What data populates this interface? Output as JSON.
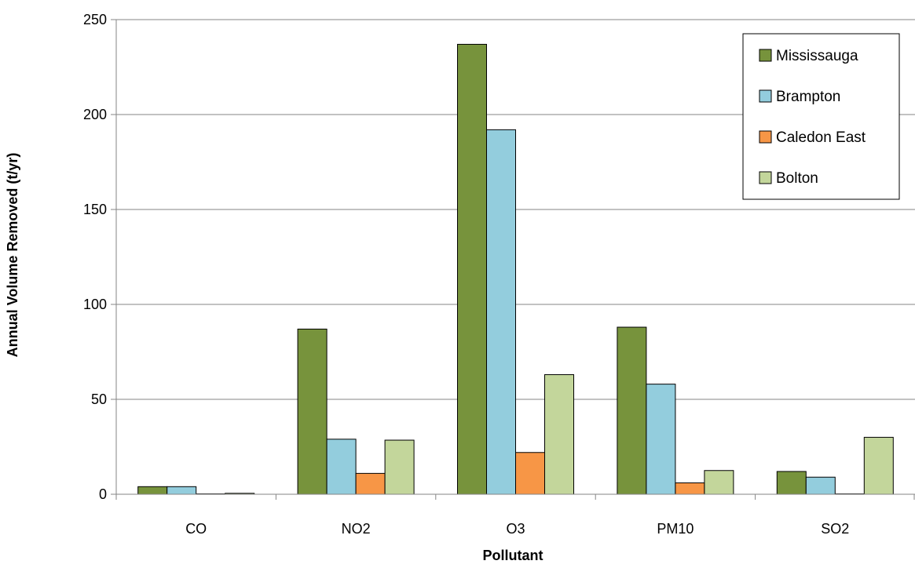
{
  "chart_data": {
    "type": "bar",
    "title": "",
    "xlabel": "Pollutant",
    "ylabel": "Annual Volume Removed (t/yr)",
    "ylim": [
      0,
      250
    ],
    "yticks": [
      0,
      50,
      100,
      150,
      200,
      250
    ],
    "grid": true,
    "legend_position": "top-right",
    "categories": [
      "CO",
      "NO2",
      "O3",
      "PM10",
      "SO2"
    ],
    "series": [
      {
        "name": "Mississauga",
        "color": "#77933c",
        "values": [
          4,
          87,
          237,
          88,
          12
        ]
      },
      {
        "name": "Brampton",
        "color": "#93cddd",
        "values": [
          4,
          29,
          192,
          58,
          9
        ]
      },
      {
        "name": "Caledon East",
        "color": "#f79646",
        "values": [
          0,
          11,
          22,
          6,
          0
        ]
      },
      {
        "name": "Bolton",
        "color": "#c3d69b",
        "values": [
          0.5,
          28.5,
          63,
          12.5,
          30
        ]
      }
    ]
  }
}
